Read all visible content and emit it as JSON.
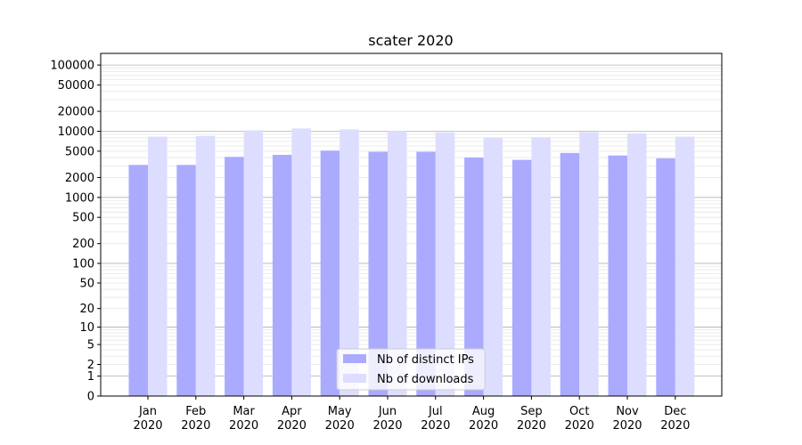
{
  "chart_data": {
    "type": "bar",
    "title": "scater 2020",
    "xlabel": "",
    "ylabel": "",
    "yscale": "symlog",
    "ylim": [
      0,
      150000
    ],
    "grid": true,
    "categories": [
      {
        "month": "Jan",
        "year": "2020"
      },
      {
        "month": "Feb",
        "year": "2020"
      },
      {
        "month": "Mar",
        "year": "2020"
      },
      {
        "month": "Apr",
        "year": "2020"
      },
      {
        "month": "May",
        "year": "2020"
      },
      {
        "month": "Jun",
        "year": "2020"
      },
      {
        "month": "Jul",
        "year": "2020"
      },
      {
        "month": "Aug",
        "year": "2020"
      },
      {
        "month": "Sep",
        "year": "2020"
      },
      {
        "month": "Oct",
        "year": "2020"
      },
      {
        "month": "Nov",
        "year": "2020"
      },
      {
        "month": "Dec",
        "year": "2020"
      }
    ],
    "series": [
      {
        "name": "Nb of distinct IPs",
        "color": "#aaaaff",
        "values": [
          3100,
          3100,
          4100,
          4400,
          5100,
          4900,
          4900,
          4000,
          3700,
          4700,
          4300,
          3900
        ]
      },
      {
        "name": "Nb of downloads",
        "color": "#ddddff",
        "values": [
          8300,
          8500,
          10300,
          11000,
          10700,
          10100,
          9600,
          7900,
          8100,
          9700,
          9300,
          8300
        ]
      }
    ],
    "yticks": [
      {
        "value": 0,
        "label": "0"
      },
      {
        "value": 1,
        "label": "1"
      },
      {
        "value": 2,
        "label": "2"
      },
      {
        "value": 5,
        "label": "5"
      },
      {
        "value": 10,
        "label": "10"
      },
      {
        "value": 20,
        "label": "20"
      },
      {
        "value": 50,
        "label": "50"
      },
      {
        "value": 100,
        "label": "100"
      },
      {
        "value": 200,
        "label": "200"
      },
      {
        "value": 500,
        "label": "500"
      },
      {
        "value": 1000,
        "label": "1000"
      },
      {
        "value": 2000,
        "label": "2000"
      },
      {
        "value": 5000,
        "label": "5000"
      },
      {
        "value": 10000,
        "label": "10000"
      },
      {
        "value": 20000,
        "label": "20000"
      },
      {
        "value": 50000,
        "label": "50000"
      },
      {
        "value": 100000,
        "label": "100000"
      }
    ],
    "legend": {
      "placement": "lower-center"
    }
  }
}
